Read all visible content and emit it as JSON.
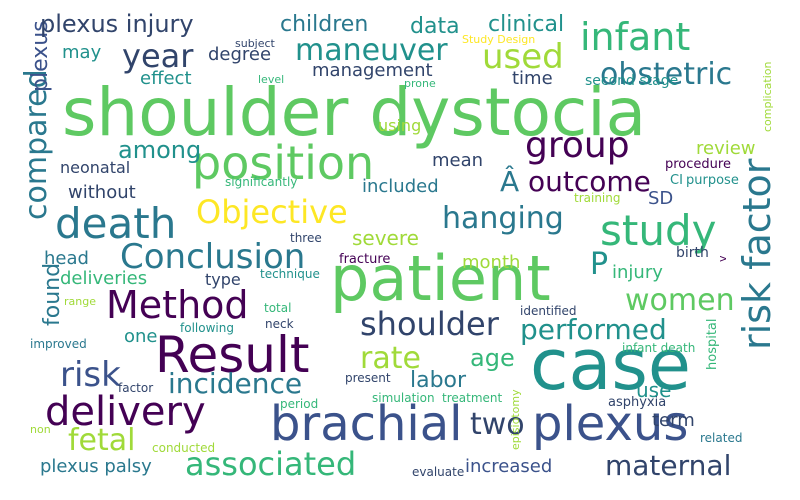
{
  "colors": {
    "green": "#5ec962",
    "purple": "#440154",
    "teal": "#21918c",
    "blue": "#3b528b",
    "navy": "#31446b",
    "yellow": "#fde725",
    "lime": "#a0da39",
    "mint": "#35b779",
    "aqua": "#2a788e"
  },
  "words": {
    "shoulder_dystocia": "shoulder dystocia",
    "patient": "patient",
    "case": "case",
    "brachial": "brachial",
    "plexus": "plexus",
    "result": "Result",
    "position": "position",
    "method": "Method",
    "death": "death",
    "delivery": "delivery",
    "conclusion": "Conclusion",
    "group": "group",
    "infant": "infant",
    "study": "study",
    "risk_factor": "risk factor",
    "objective": "Objective",
    "maneuver": "maneuver",
    "hanging": "hanging",
    "shoulder": "shoulder",
    "year": "year",
    "outcome": "outcome",
    "used": "used",
    "obstetric": "obstetric",
    "incidence": "incidence",
    "associated": "associated",
    "maternal": "maternal",
    "risk": "risk",
    "compared": "compared",
    "performed": "performed",
    "rate": "rate",
    "women": "women",
    "fetal": "fetal",
    "two": "two",
    "p_letter": "P",
    "a_accent": "Â",
    "plexus_injury": "plexus injury",
    "children": "children",
    "data": "data",
    "clinical": "clinical",
    "age": "age",
    "among": "among",
    "labor": "labor",
    "severe": "severe",
    "management": "management",
    "plexus_palsy": "plexus palsy",
    "increased": "increased",
    "deliveries": "deliveries",
    "neonatal": "neonatal",
    "without": "without",
    "may": "may",
    "degree": "degree",
    "effect": "effect",
    "included": "included",
    "mean": "mean",
    "head": "head",
    "found": "found",
    "one": "one",
    "month": "month",
    "injury": "injury",
    "type": "type",
    "review": "review",
    "sd": "SD",
    "use": "use",
    "time": "time",
    "term": "term",
    "using": "using",
    "second_stage": "second stage",
    "procedure": "procedure",
    "ci": "CI",
    "purpose": "purpose",
    "training": "training",
    "birth": "birth",
    "identified": "identified",
    "hospital": "hospital",
    "infant_death": "infant death",
    "asphyxia": "asphyxia",
    "episiotomy": "episiotomy",
    "simulation": "simulation",
    "treatment": "treatment",
    "related": "related",
    "evaluate": "evaluate",
    "conducted": "conducted",
    "factor": "factor",
    "period": "period",
    "present": "present",
    "improved": "improved",
    "non": "non",
    "range": "range",
    "total": "total",
    "neck": "neck",
    "following": "following",
    "three": "three",
    "fracture": "fracture",
    "technique": "technique",
    "significantly": "significantly",
    "level": "level",
    "prone": "prone",
    "subject": "subject",
    "study_design": "Study Design",
    "complication": "complication",
    "v": "v"
  }
}
